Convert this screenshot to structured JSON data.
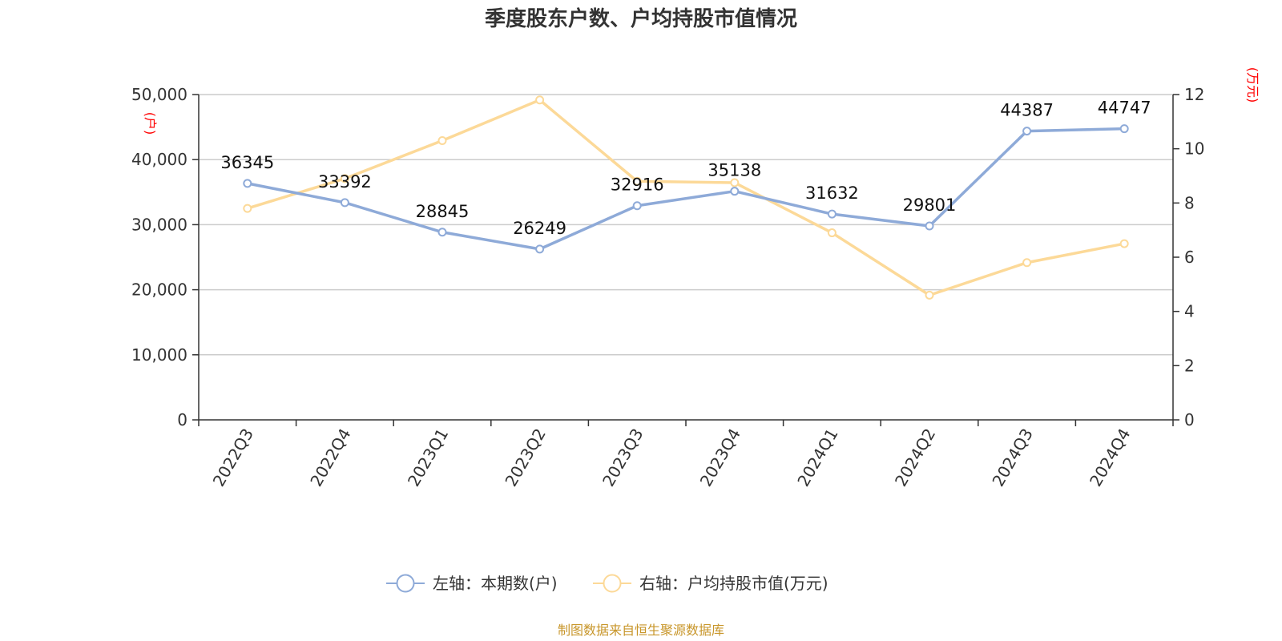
{
  "chart_data": {
    "type": "line",
    "title": "季度股东户数、户均持股市值情况",
    "categories": [
      "2022Q3",
      "2022Q4",
      "2023Q1",
      "2023Q2",
      "2023Q3",
      "2023Q4",
      "2024Q1",
      "2024Q2",
      "2024Q3",
      "2024Q4"
    ],
    "y_left": {
      "unit": "(户)",
      "min": 0,
      "max": 50000,
      "ticks": [
        "0",
        "10,000",
        "20,000",
        "30,000",
        "40,000",
        "50,000"
      ],
      "tick_values": [
        0,
        10000,
        20000,
        30000,
        40000,
        50000
      ]
    },
    "y_right": {
      "unit": "(万元)",
      "min": 0,
      "max": 12,
      "ticks": [
        "0",
        "2",
        "4",
        "6",
        "8",
        "10",
        "12"
      ],
      "tick_values": [
        0,
        2,
        4,
        6,
        8,
        10,
        12
      ]
    },
    "grid": true,
    "legend_position": "bottom-center",
    "series": [
      {
        "name": "左轴：本期数(户)",
        "axis": "left",
        "color": "#8eaad8",
        "values": [
          36345,
          33392,
          28845,
          26249,
          32916,
          35138,
          31632,
          29801,
          44387,
          44747
        ],
        "labels": [
          "36345",
          "33392",
          "28845",
          "26249",
          "32916",
          "35138",
          "31632",
          "29801",
          "44387",
          "44747"
        ]
      },
      {
        "name": "右轴：户均持股市值(万元)",
        "axis": "right",
        "color": "#fcd998",
        "values": [
          7.8,
          8.9,
          10.3,
          11.8,
          8.8,
          8.75,
          6.9,
          4.6,
          5.8,
          6.5
        ]
      }
    ],
    "source": "制图数据来自恒生聚源数据库"
  }
}
